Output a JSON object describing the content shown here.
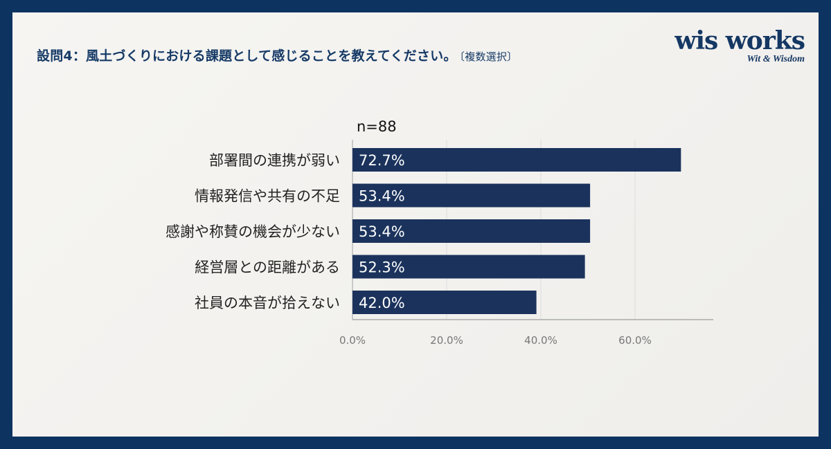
{
  "title": "設問4：風土づくりにおける課題として感じることを教えてください。",
  "title_note": "〔複数選択〕",
  "logo": {
    "main": "wis works",
    "sub": "Wit & Wisdom"
  },
  "colors": {
    "bar": "#1b335c",
    "frame": "#0d3361",
    "grid": "#dddddd"
  },
  "chart_data": {
    "type": "bar",
    "orientation": "horizontal",
    "annotation": "n=88",
    "categories": [
      "部署間の連携が弱い",
      "情報発信や共有の不足",
      "感謝や称賛の機会が少ない",
      "経営層との距離がある",
      "社員の本音が拾えない"
    ],
    "values": [
      72.7,
      53.4,
      53.4,
      52.3,
      42.0
    ],
    "data_labels": [
      "72.7%",
      "53.4%",
      "53.4%",
      "52.3%",
      "42.0%"
    ],
    "xticks": [
      0,
      20,
      40,
      60
    ],
    "xtick_labels": [
      "0.0%",
      "20.0%",
      "40.0%",
      "60.0%"
    ],
    "xlim": [
      0,
      76
    ],
    "grid": true,
    "legend": "none"
  }
}
